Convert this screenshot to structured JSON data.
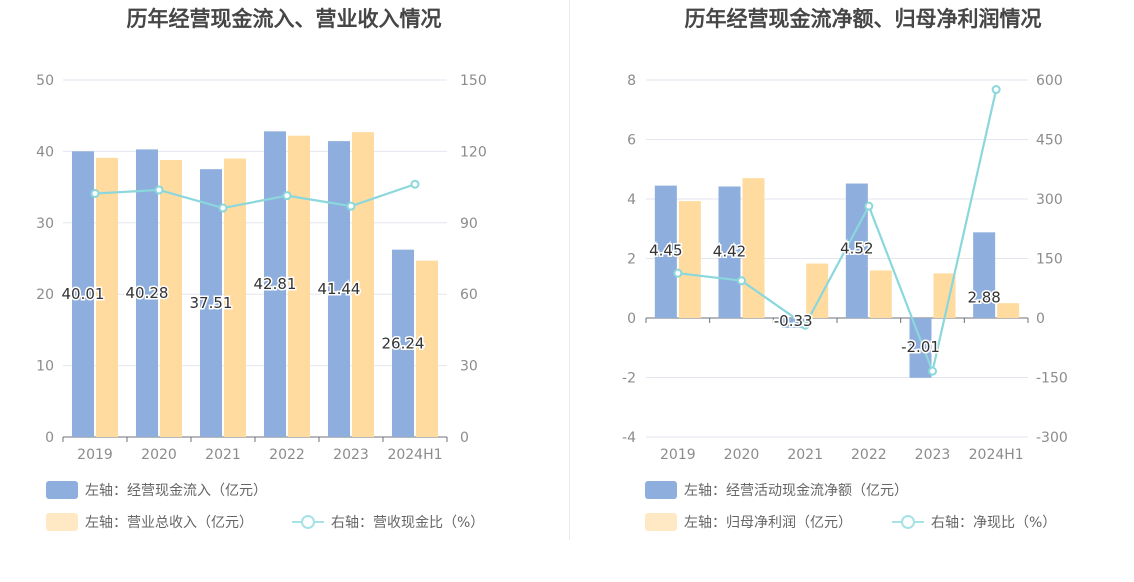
{
  "chart_data": [
    {
      "type": "bar",
      "title": "历年经营现金流入、营业收入情况",
      "categories": [
        "2019",
        "2020",
        "2021",
        "2022",
        "2023",
        "2024H1"
      ],
      "ylim_left": [
        0,
        50
      ],
      "ylim_right": [
        0,
        150
      ],
      "left_ticks": [
        "0",
        "10",
        "20",
        "30",
        "40",
        "50"
      ],
      "right_ticks": [
        "0",
        "30",
        "60",
        "90",
        "120",
        "150"
      ],
      "series": [
        {
          "name": "左轴：经营现金流入（亿元）",
          "kind": "bar",
          "axis": "left",
          "color": "#8eaedd",
          "values": [
            40.01,
            40.28,
            37.51,
            42.81,
            41.44,
            26.24
          ],
          "labels": [
            "40.01",
            "40.28",
            "37.51",
            "42.81",
            "41.44",
            "26.24"
          ]
        },
        {
          "name": "左轴：营业总收入（亿元）",
          "kind": "bar",
          "axis": "left",
          "color": "#ffdba0",
          "values": [
            39.1,
            38.8,
            39.0,
            42.2,
            42.7,
            24.7
          ]
        },
        {
          "name": "右轴：营收现金比（%）",
          "kind": "line",
          "axis": "right",
          "color": "#8ad7dc",
          "values": [
            102.3,
            103.8,
            96.2,
            101.4,
            97.0,
            106.2
          ]
        }
      ],
      "grid": true,
      "legend_position": "bottom"
    },
    {
      "type": "bar",
      "title": "历年经营现金流净额、归母净利润情况",
      "categories": [
        "2019",
        "2020",
        "2021",
        "2022",
        "2023",
        "2024H1"
      ],
      "ylim_left": [
        -4,
        8
      ],
      "ylim_right": [
        -300,
        600
      ],
      "left_ticks": [
        "-4",
        "-2",
        "0",
        "2",
        "4",
        "6",
        "8"
      ],
      "right_ticks": [
        "-300",
        "-150",
        "0",
        "150",
        "300",
        "450",
        "600"
      ],
      "series": [
        {
          "name": "左轴：经营活动现金流净额（亿元）",
          "kind": "bar",
          "axis": "left",
          "color": "#8eaedd",
          "values": [
            4.45,
            4.42,
            -0.33,
            4.52,
            -2.01,
            2.88
          ],
          "labels": [
            "4.45",
            "4.42",
            "-0.33",
            "4.52",
            "-2.01",
            "2.88"
          ]
        },
        {
          "name": "左轴：归母净利润（亿元）",
          "kind": "bar",
          "axis": "left",
          "color": "#ffdba0",
          "values": [
            3.93,
            4.7,
            1.83,
            1.6,
            1.5,
            0.5
          ]
        },
        {
          "name": "右轴：净现比（%）",
          "kind": "line",
          "axis": "right",
          "color": "#8ad7dc",
          "values": [
            113,
            94,
            -18,
            282,
            -134,
            576
          ]
        }
      ],
      "grid": true,
      "legend_position": "bottom"
    }
  ]
}
